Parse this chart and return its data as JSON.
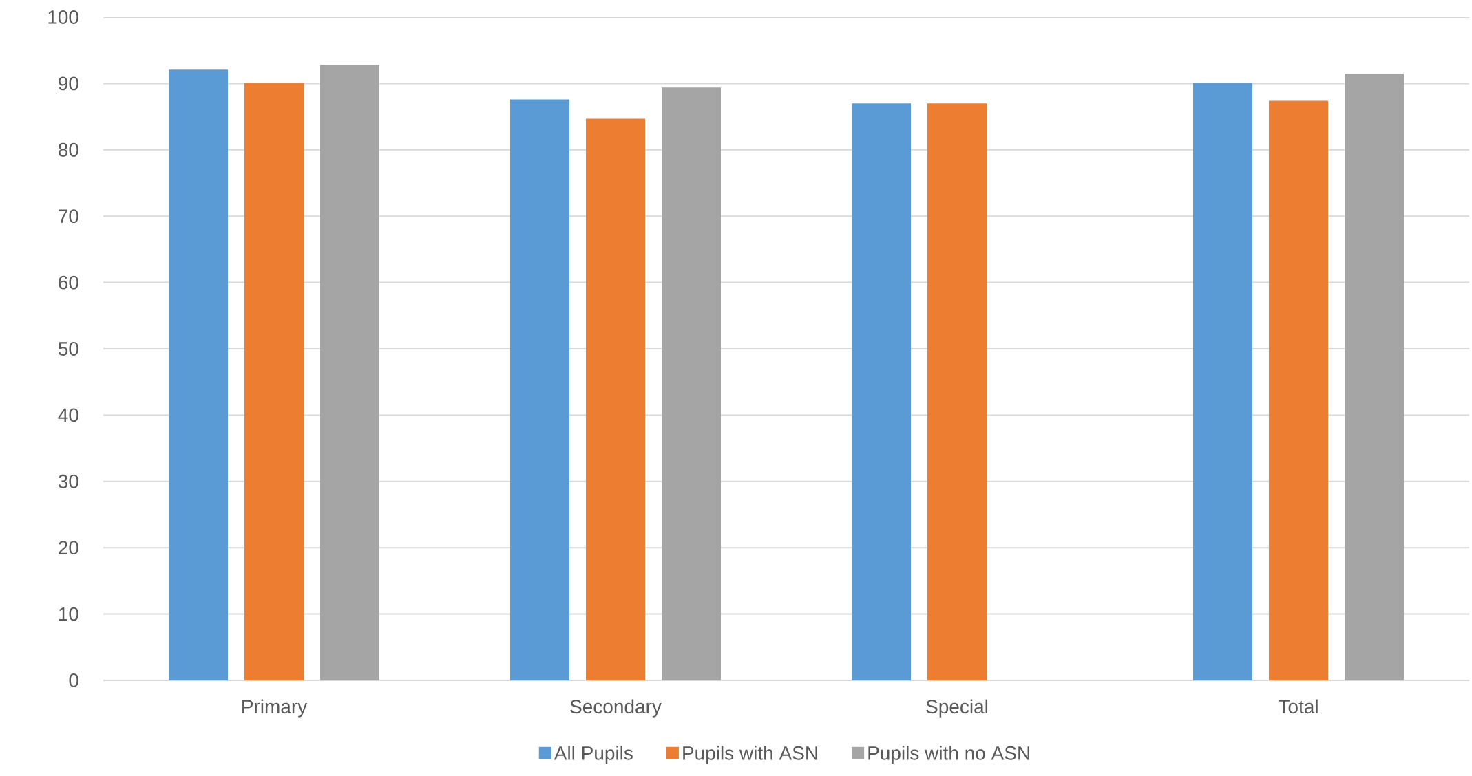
{
  "chart_data": {
    "type": "bar",
    "categories": [
      "Primary",
      "Secondary",
      "Special",
      "Total"
    ],
    "series": [
      {
        "name": "All Pupils",
        "color": "#5b9bd5",
        "values": [
          92.1,
          87.6,
          87.0,
          90.1
        ]
      },
      {
        "name": "Pupils with ASN",
        "color": "#ed7d31",
        "values": [
          90.1,
          84.7,
          87.0,
          87.4
        ]
      },
      {
        "name": "Pupils with no ASN",
        "color": "#a5a5a5",
        "values": [
          92.8,
          89.4,
          null,
          91.5
        ]
      }
    ],
    "ylim": [
      0,
      100
    ],
    "yticks": [
      0,
      10,
      20,
      30,
      40,
      50,
      60,
      70,
      80,
      90,
      100
    ],
    "grid": "y",
    "legend": "bottom"
  }
}
